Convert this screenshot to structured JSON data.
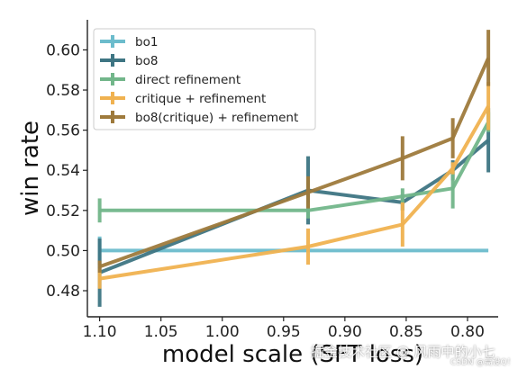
{
  "chart_data": {
    "type": "line",
    "xlabel": "model scale (SFT loss)",
    "ylabel": "win rate",
    "x_axis": {
      "direction": "reversed",
      "lim": [
        1.11,
        0.775
      ],
      "ticks": [
        1.1,
        1.05,
        1.0,
        0.95,
        0.9,
        0.85,
        0.8
      ],
      "tick_labels": [
        "1.10",
        "1.05",
        "1.00",
        "0.95",
        "0.90",
        "0.85",
        "0.80"
      ]
    },
    "y_axis": {
      "lim": [
        0.467,
        0.615
      ],
      "ticks": [
        0.48,
        0.5,
        0.52,
        0.54,
        0.56,
        0.58,
        0.6
      ],
      "tick_labels": [
        "0.48",
        "0.50",
        "0.52",
        "0.54",
        "0.56",
        "0.58",
        "0.60"
      ]
    },
    "grid": false,
    "legend": "top-left",
    "series": [
      {
        "name": "bo1",
        "color": "#6cbccc",
        "x": [
          1.1,
          0.93,
          0.853,
          0.812,
          0.783
        ],
        "y": [
          0.5,
          0.5,
          0.5,
          0.5,
          0.5
        ],
        "err": [
          0.007,
          0,
          0,
          0,
          0
        ]
      },
      {
        "name": "bo8",
        "color": "#3e7583",
        "x": [
          1.1,
          0.93,
          0.853,
          0.812,
          0.783
        ],
        "y": [
          0.489,
          0.53,
          0.524,
          0.54,
          0.555
        ],
        "err": [
          0.017,
          0.017,
          0.004,
          0.005,
          0.016
        ]
      },
      {
        "name": "direct refinement",
        "color": "#72b68a",
        "x": [
          1.1,
          0.93,
          0.853,
          0.812,
          0.783
        ],
        "y": [
          0.52,
          0.52,
          0.527,
          0.531,
          0.564
        ],
        "err": [
          0.006,
          0.004,
          0.004,
          0.01,
          0.005
        ]
      },
      {
        "name": "critique + refinement",
        "color": "#f0b250",
        "x": [
          1.1,
          0.93,
          0.853,
          0.812,
          0.783
        ],
        "y": [
          0.486,
          0.502,
          0.513,
          0.541,
          0.572
        ],
        "err": [
          0.005,
          0.009,
          0.011,
          0.003,
          0.012
        ]
      },
      {
        "name": "bo8(critique) + refinement",
        "color": "#9e7a3c",
        "x": [
          1.1,
          0.93,
          0.853,
          0.812,
          0.783
        ],
        "y": [
          0.492,
          0.529,
          0.546,
          0.556,
          0.596
        ],
        "err": [
          0.003,
          0.008,
          0.011,
          0.01,
          0.014
        ]
      }
    ]
  },
  "watermark": {
    "text": "掘金技术社区 @ 风雨中的小七",
    "small_text": "CSDN @高设Q！"
  }
}
